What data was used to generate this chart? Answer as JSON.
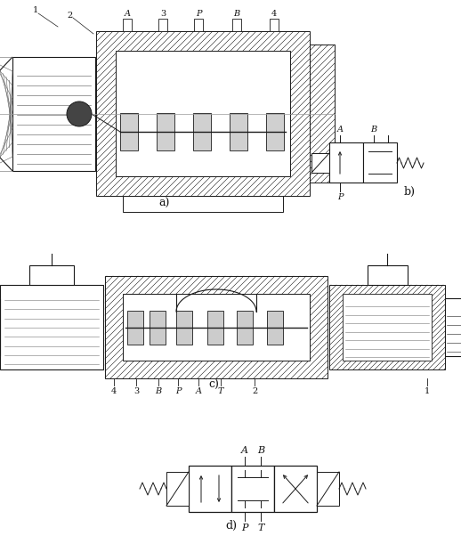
{
  "bg": "#ffffff",
  "ec": "#1a1a1a",
  "figsize": [
    5.18,
    6.2
  ],
  "dpi": 100,
  "labels": {
    "a": "a)",
    "b": "b)",
    "c": "c)",
    "d": "d)",
    "port_a": "A",
    "port_b": "B",
    "port_p": "P",
    "port_t": "T"
  },
  "a_ports": [
    "A",
    "3",
    "P",
    "B",
    "4"
  ],
  "a_nums": [
    "1",
    "2"
  ],
  "c_ports_left": [
    "4",
    "3",
    "B",
    "P",
    "A",
    "T"
  ],
  "c_nums": [
    "2",
    "1"
  ]
}
